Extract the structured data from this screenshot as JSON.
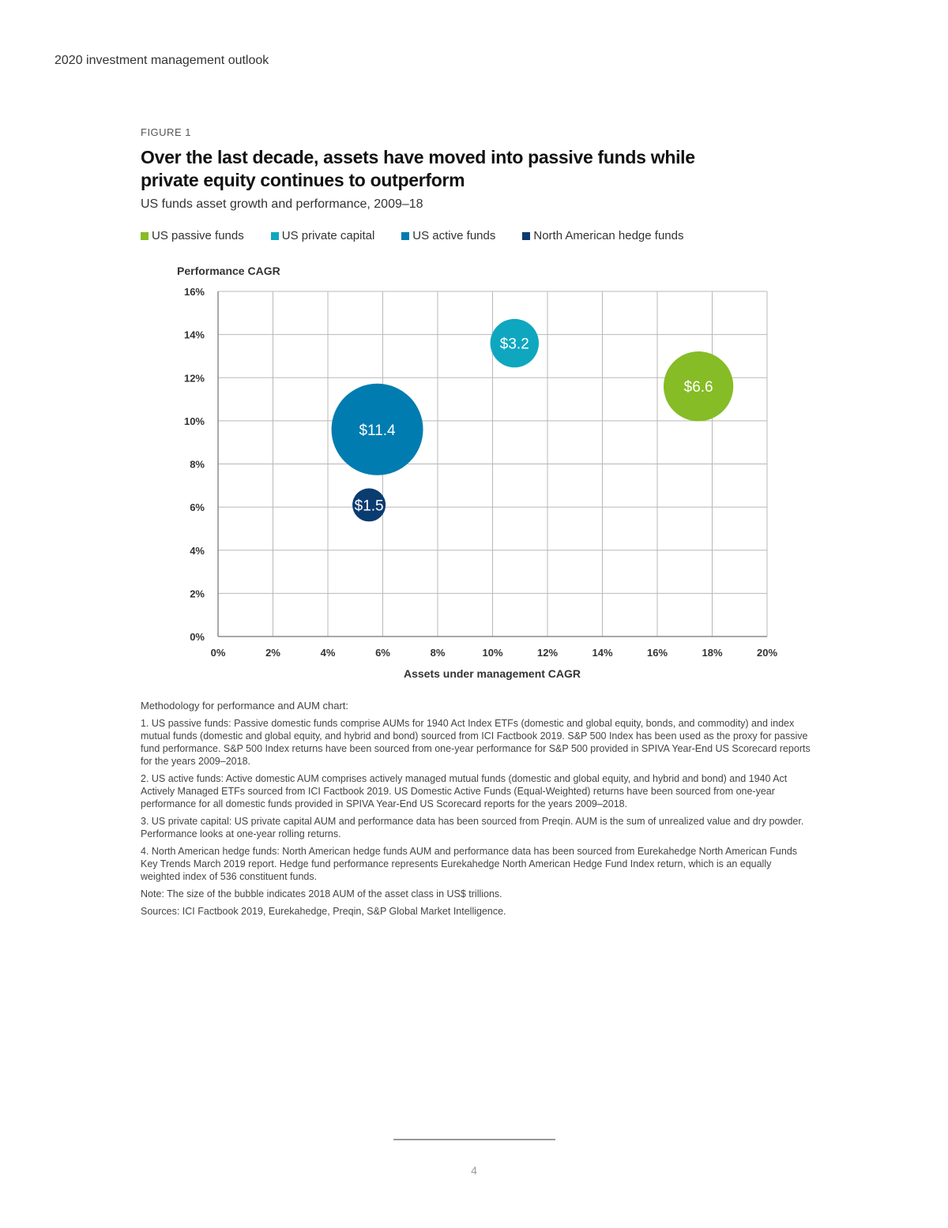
{
  "running_header": "2020 investment management outlook",
  "figure_label": "FIGURE 1",
  "chart_data": {
    "type": "scatter",
    "title": "Over the last decade, assets have moved into passive funds while private equity continues to outperform",
    "subtitle": "US funds asset growth and performance, 2009–18",
    "xlabel": "Assets under management CAGR",
    "ylabel": "Performance CAGR",
    "xlim": [
      0,
      20
    ],
    "ylim": [
      0,
      16
    ],
    "x_ticks": [
      "0%",
      "2%",
      "4%",
      "6%",
      "8%",
      "10%",
      "12%",
      "14%",
      "16%",
      "18%",
      "20%"
    ],
    "y_ticks": [
      "0%",
      "2%",
      "4%",
      "6%",
      "8%",
      "10%",
      "12%",
      "14%",
      "16%"
    ],
    "grid": true,
    "legend_position": "top",
    "series": [
      {
        "name": "US passive funds",
        "color": "#86bc25",
        "x": 17.5,
        "y": 11.6,
        "size": 6.6,
        "label": "$6.6"
      },
      {
        "name": "US private capital",
        "color": "#0fa7bf",
        "x": 10.8,
        "y": 13.6,
        "size": 3.2,
        "label": "$3.2"
      },
      {
        "name": "US active funds",
        "color": "#007cb0",
        "x": 5.8,
        "y": 9.6,
        "size": 11.4,
        "label": "$11.4"
      },
      {
        "name": "North American hedge funds",
        "color": "#0b3c70",
        "x": 5.5,
        "y": 6.1,
        "size": 1.5,
        "label": "$1.5"
      }
    ]
  },
  "notes": {
    "heading": "Methodology for performance and AUM chart:",
    "items": [
      "1. US passive funds: Passive domestic funds comprise AUMs for 1940 Act Index ETFs (domestic and global equity, bonds, and commodity) and index mutual funds (domestic and global equity, and hybrid and bond) sourced from ICI Factbook 2019. S&P 500 Index has been used as the proxy for passive fund performance. S&P 500 Index returns have been sourced from one-year performance for S&P 500 provided in SPIVA Year-End US Scorecard reports for the years 2009–2018.",
      "2. US active funds: Active domestic AUM comprises actively managed mutual funds (domestic and global equity, and hybrid and bond) and 1940 Act Actively Managed ETFs sourced from ICI Factbook 2019. US Domestic Active Funds (Equal-Weighted) returns have been sourced from one-year performance for all domestic funds provided in SPIVA Year-End US Scorecard reports for the years 2009–2018.",
      "3. US private capital: US private capital AUM and performance data has been sourced from Preqin. AUM is the sum of unrealized value and dry powder. Performance looks at one-year rolling returns.",
      "4. North American hedge funds: North American hedge funds AUM and performance data has been sourced from Eurekahedge North American Funds Key Trends March 2019 report. Hedge fund performance represents Eurekahedge North American Hedge Fund Index return, which is an equally weighted index of 536 constituent funds."
    ],
    "note": "Note: The size of the bubble indicates 2018 AUM of the asset class in US$ trillions.",
    "sources": "Sources: ICI Factbook 2019, Eurekahedge, Preqin, S&P Global Market Intelligence."
  },
  "page_number": "4"
}
